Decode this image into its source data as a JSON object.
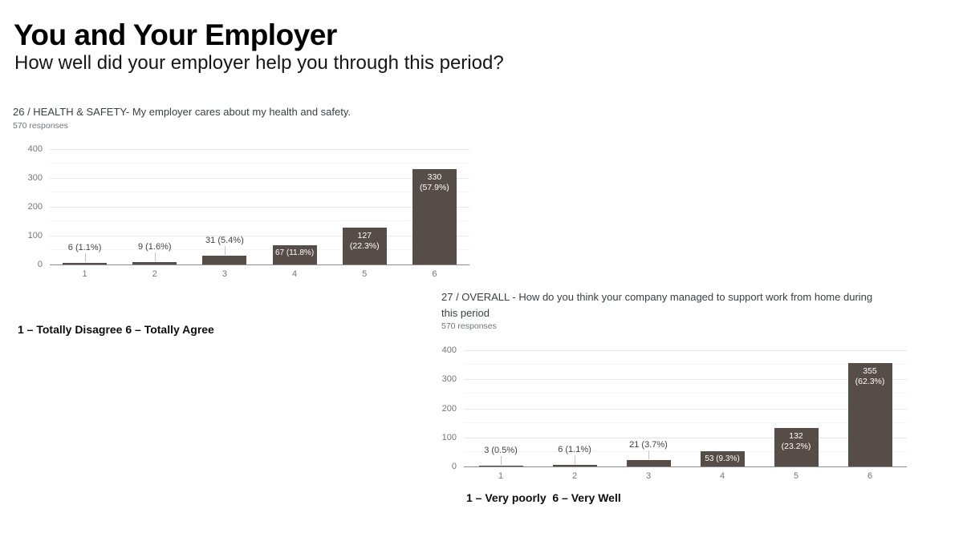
{
  "slide": {
    "title": "You and Your Employer",
    "subtitle": "How well did your employer help you through this period?"
  },
  "captions": {
    "chart1": "1 – Totally Disagree 6 – Totally Agree",
    "chart2": "1 – Very poorly  6 – Very Well"
  },
  "chart_data": [
    {
      "type": "bar",
      "title": "26 / HEALTH & SAFETY- My employer cares about my health and safety.",
      "subtitle": "570 responses",
      "categories": [
        "1",
        "2",
        "3",
        "4",
        "5",
        "6"
      ],
      "values": [
        6,
        9,
        31,
        67,
        127,
        330
      ],
      "percent_labels": [
        "6 (1.1%)",
        "9 (1.6%)",
        "31 (5.4%)",
        "67 (11.8%)",
        "127 (22.3%)",
        "330 (57.9%)"
      ],
      "xlabel": "",
      "ylabel": "",
      "ylim": [
        0,
        400
      ],
      "yticks": [
        0,
        100,
        200,
        300,
        400
      ],
      "bar_color": "#564c48",
      "grid": true,
      "legend": "none"
    },
    {
      "type": "bar",
      "title": "27 / OVERALL - How do you think your company managed to support work from home during this period",
      "subtitle": "570 responses",
      "categories": [
        "1",
        "2",
        "3",
        "4",
        "5",
        "6"
      ],
      "values": [
        3,
        6,
        21,
        53,
        132,
        355
      ],
      "percent_labels": [
        "3 (0.5%)",
        "6 (1.1%)",
        "21 (3.7%)",
        "53 (9.3%)",
        "132 (23.2%)",
        "355 (62.3%)"
      ],
      "xlabel": "",
      "ylabel": "",
      "ylim": [
        0,
        400
      ],
      "yticks": [
        0,
        100,
        200,
        300,
        400
      ],
      "bar_color": "#564c48",
      "grid": true,
      "legend": "none"
    }
  ]
}
